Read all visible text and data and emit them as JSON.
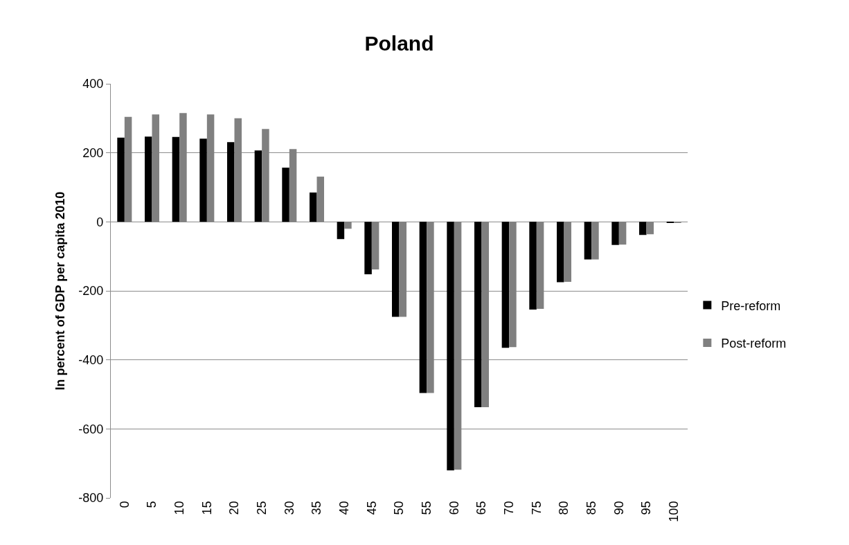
{
  "chart_data": {
    "type": "bar",
    "title": "Poland",
    "ylabel": "In percent of GDP per capita 2010",
    "categories": [
      "0",
      "5",
      "10",
      "15",
      "20",
      "25",
      "30",
      "35",
      "40",
      "45",
      "50",
      "55",
      "60",
      "65",
      "70",
      "75",
      "80",
      "85",
      "90",
      "95",
      "100"
    ],
    "series": [
      {
        "name": "Pre-reform",
        "color": "#000000",
        "values": [
          244,
          247,
          246,
          241,
          231,
          207,
          157,
          85,
          -50,
          -152,
          -275,
          -496,
          -720,
          -537,
          -365,
          -254,
          -175,
          -109,
          -67,
          -38,
          -3
        ]
      },
      {
        "name": "Post-reform",
        "color": "#808080",
        "values": [
          304,
          311,
          315,
          311,
          300,
          269,
          211,
          131,
          -20,
          -138,
          -275,
          -496,
          -718,
          -537,
          -363,
          -252,
          -174,
          -109,
          -66,
          -36,
          -2
        ]
      }
    ],
    "ylim": [
      -800,
      400
    ],
    "yticks": [
      -800,
      -600,
      -400,
      -200,
      0,
      200,
      400
    ],
    "grid": "y",
    "legend": "right"
  }
}
